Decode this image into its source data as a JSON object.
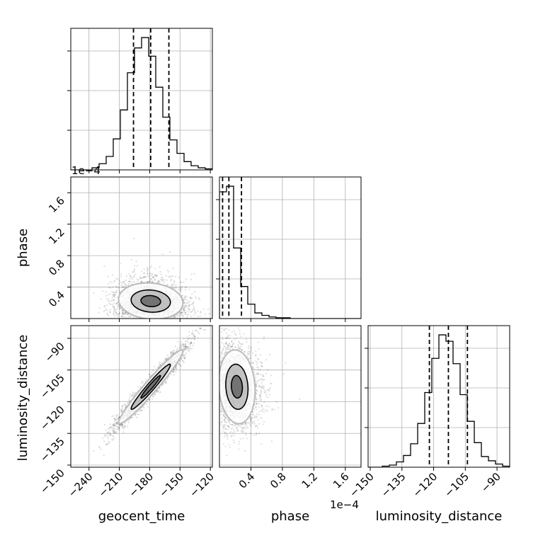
{
  "chart_data": {
    "type": "corner",
    "parameters": [
      "geocent_time",
      "phase",
      "luminosity_distance"
    ],
    "axis_labels": {
      "geocent_time": "geocent_time",
      "phase": "phase",
      "luminosity_distance": "luminosity_distance"
    },
    "offset_text": "1e−4",
    "ranges": {
      "geocent_time": [
        -258,
        -118
      ],
      "phase": [
        0.0,
        1.8
      ],
      "luminosity_distance": [
        -151,
        -84
      ]
    },
    "ticks": {
      "geocent_time": [
        -240,
        -210,
        -180,
        -150,
        -120
      ],
      "phase": [
        0.4,
        0.8,
        1.2,
        1.6
      ],
      "luminosity_distance": [
        -150,
        -135,
        -120,
        -105,
        -90
      ]
    },
    "tick_labels": {
      "geocent_time": [
        "−240",
        "−210",
        "−180",
        "−150",
        "−120"
      ],
      "phase": [
        "0.4",
        "0.8",
        "1.2",
        "1.6"
      ],
      "luminosity_distance": [
        "−150",
        "−135",
        "−120",
        "−105",
        "−90"
      ]
    },
    "quantiles": {
      "geocent_time": [
        -196,
        -179,
        -161
      ],
      "phase": [
        0.04,
        0.12,
        0.28
      ],
      "luminosity_distance": [
        -122,
        -113,
        -104
      ]
    },
    "histograms": {
      "geocent_time": {
        "bin_edges": [
          -258,
          -251,
          -244,
          -237,
          -230,
          -223,
          -216,
          -209,
          -202,
          -195,
          -188,
          -181,
          -174,
          -167,
          -160,
          -153,
          -146,
          -139,
          -132,
          -125,
          -118
        ],
        "counts": [
          0,
          0,
          0,
          2,
          6,
          13,
          30,
          58,
          94,
          118,
          128,
          110,
          80,
          51,
          29,
          16,
          8,
          4,
          2,
          1
        ]
      },
      "phase": {
        "bin_edges": [
          0.0,
          0.09,
          0.18,
          0.27,
          0.36,
          0.45,
          0.54,
          0.63,
          0.72,
          0.81,
          0.9,
          0.99,
          1.08,
          1.17,
          1.26,
          1.35,
          1.44,
          1.53,
          1.62,
          1.71,
          1.8
        ],
        "counts": [
          158,
          165,
          88,
          40,
          18,
          7,
          4,
          2,
          1,
          1,
          0,
          0,
          0,
          0,
          0,
          0,
          0,
          0,
          0,
          0
        ]
      },
      "luminosity_distance": {
        "bin_edges": [
          -151,
          -147.65,
          -144.3,
          -140.95,
          -137.6,
          -134.25,
          -130.9,
          -127.55,
          -124.2,
          -120.85,
          -117.5,
          -114.15,
          -110.8,
          -107.45,
          -104.1,
          -100.75,
          -97.4,
          -94.05,
          -90.7,
          -87.35,
          -84.0
        ],
        "counts": [
          0,
          0,
          1,
          2,
          5,
          11,
          22,
          41,
          70,
          102,
          124,
          118,
          97,
          68,
          43,
          23,
          10,
          6,
          3,
          1
        ]
      }
    },
    "grid": true,
    "legend": "none"
  }
}
